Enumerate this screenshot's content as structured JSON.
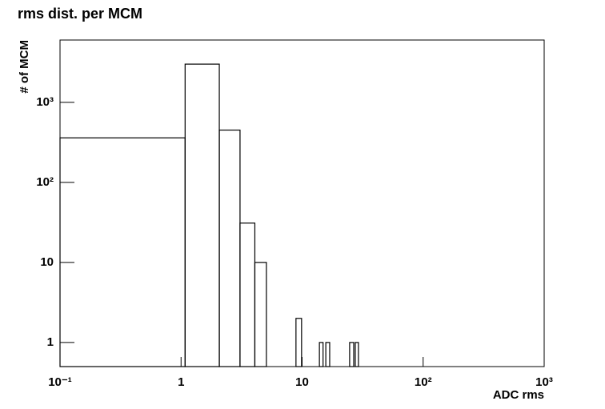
{
  "chart_data": {
    "type": "histogram",
    "title": "rms dist. per MCM",
    "xlabel": "ADC rms",
    "ylabel": "# of MCM",
    "bins": [
      0.1,
      1.08,
      2.07,
      3.07,
      4.07,
      5.07,
      8.9,
      9.9,
      13.9,
      14.9,
      15.7,
      16.9,
      24.7,
      26.7,
      27.5,
      29.2
    ],
    "values": [
      360,
      3000,
      450,
      31,
      10,
      0,
      2,
      0,
      1,
      0,
      1,
      0,
      1,
      0,
      1
    ],
    "color": "#000000",
    "xscale": "log",
    "yscale": "log",
    "xlim": [
      0.1,
      1000
    ],
    "ylim": [
      0.5,
      6000
    ],
    "xticks": [
      {
        "value": 0.1,
        "label": "10⁻¹"
      },
      1,
      10,
      {
        "value": 100,
        "label": "10²"
      },
      {
        "value": 1000,
        "label": "10³"
      }
    ],
    "yticks": [
      1,
      10,
      {
        "value": 100,
        "label": "10²"
      },
      {
        "value": 1000,
        "label": "10³"
      }
    ]
  }
}
